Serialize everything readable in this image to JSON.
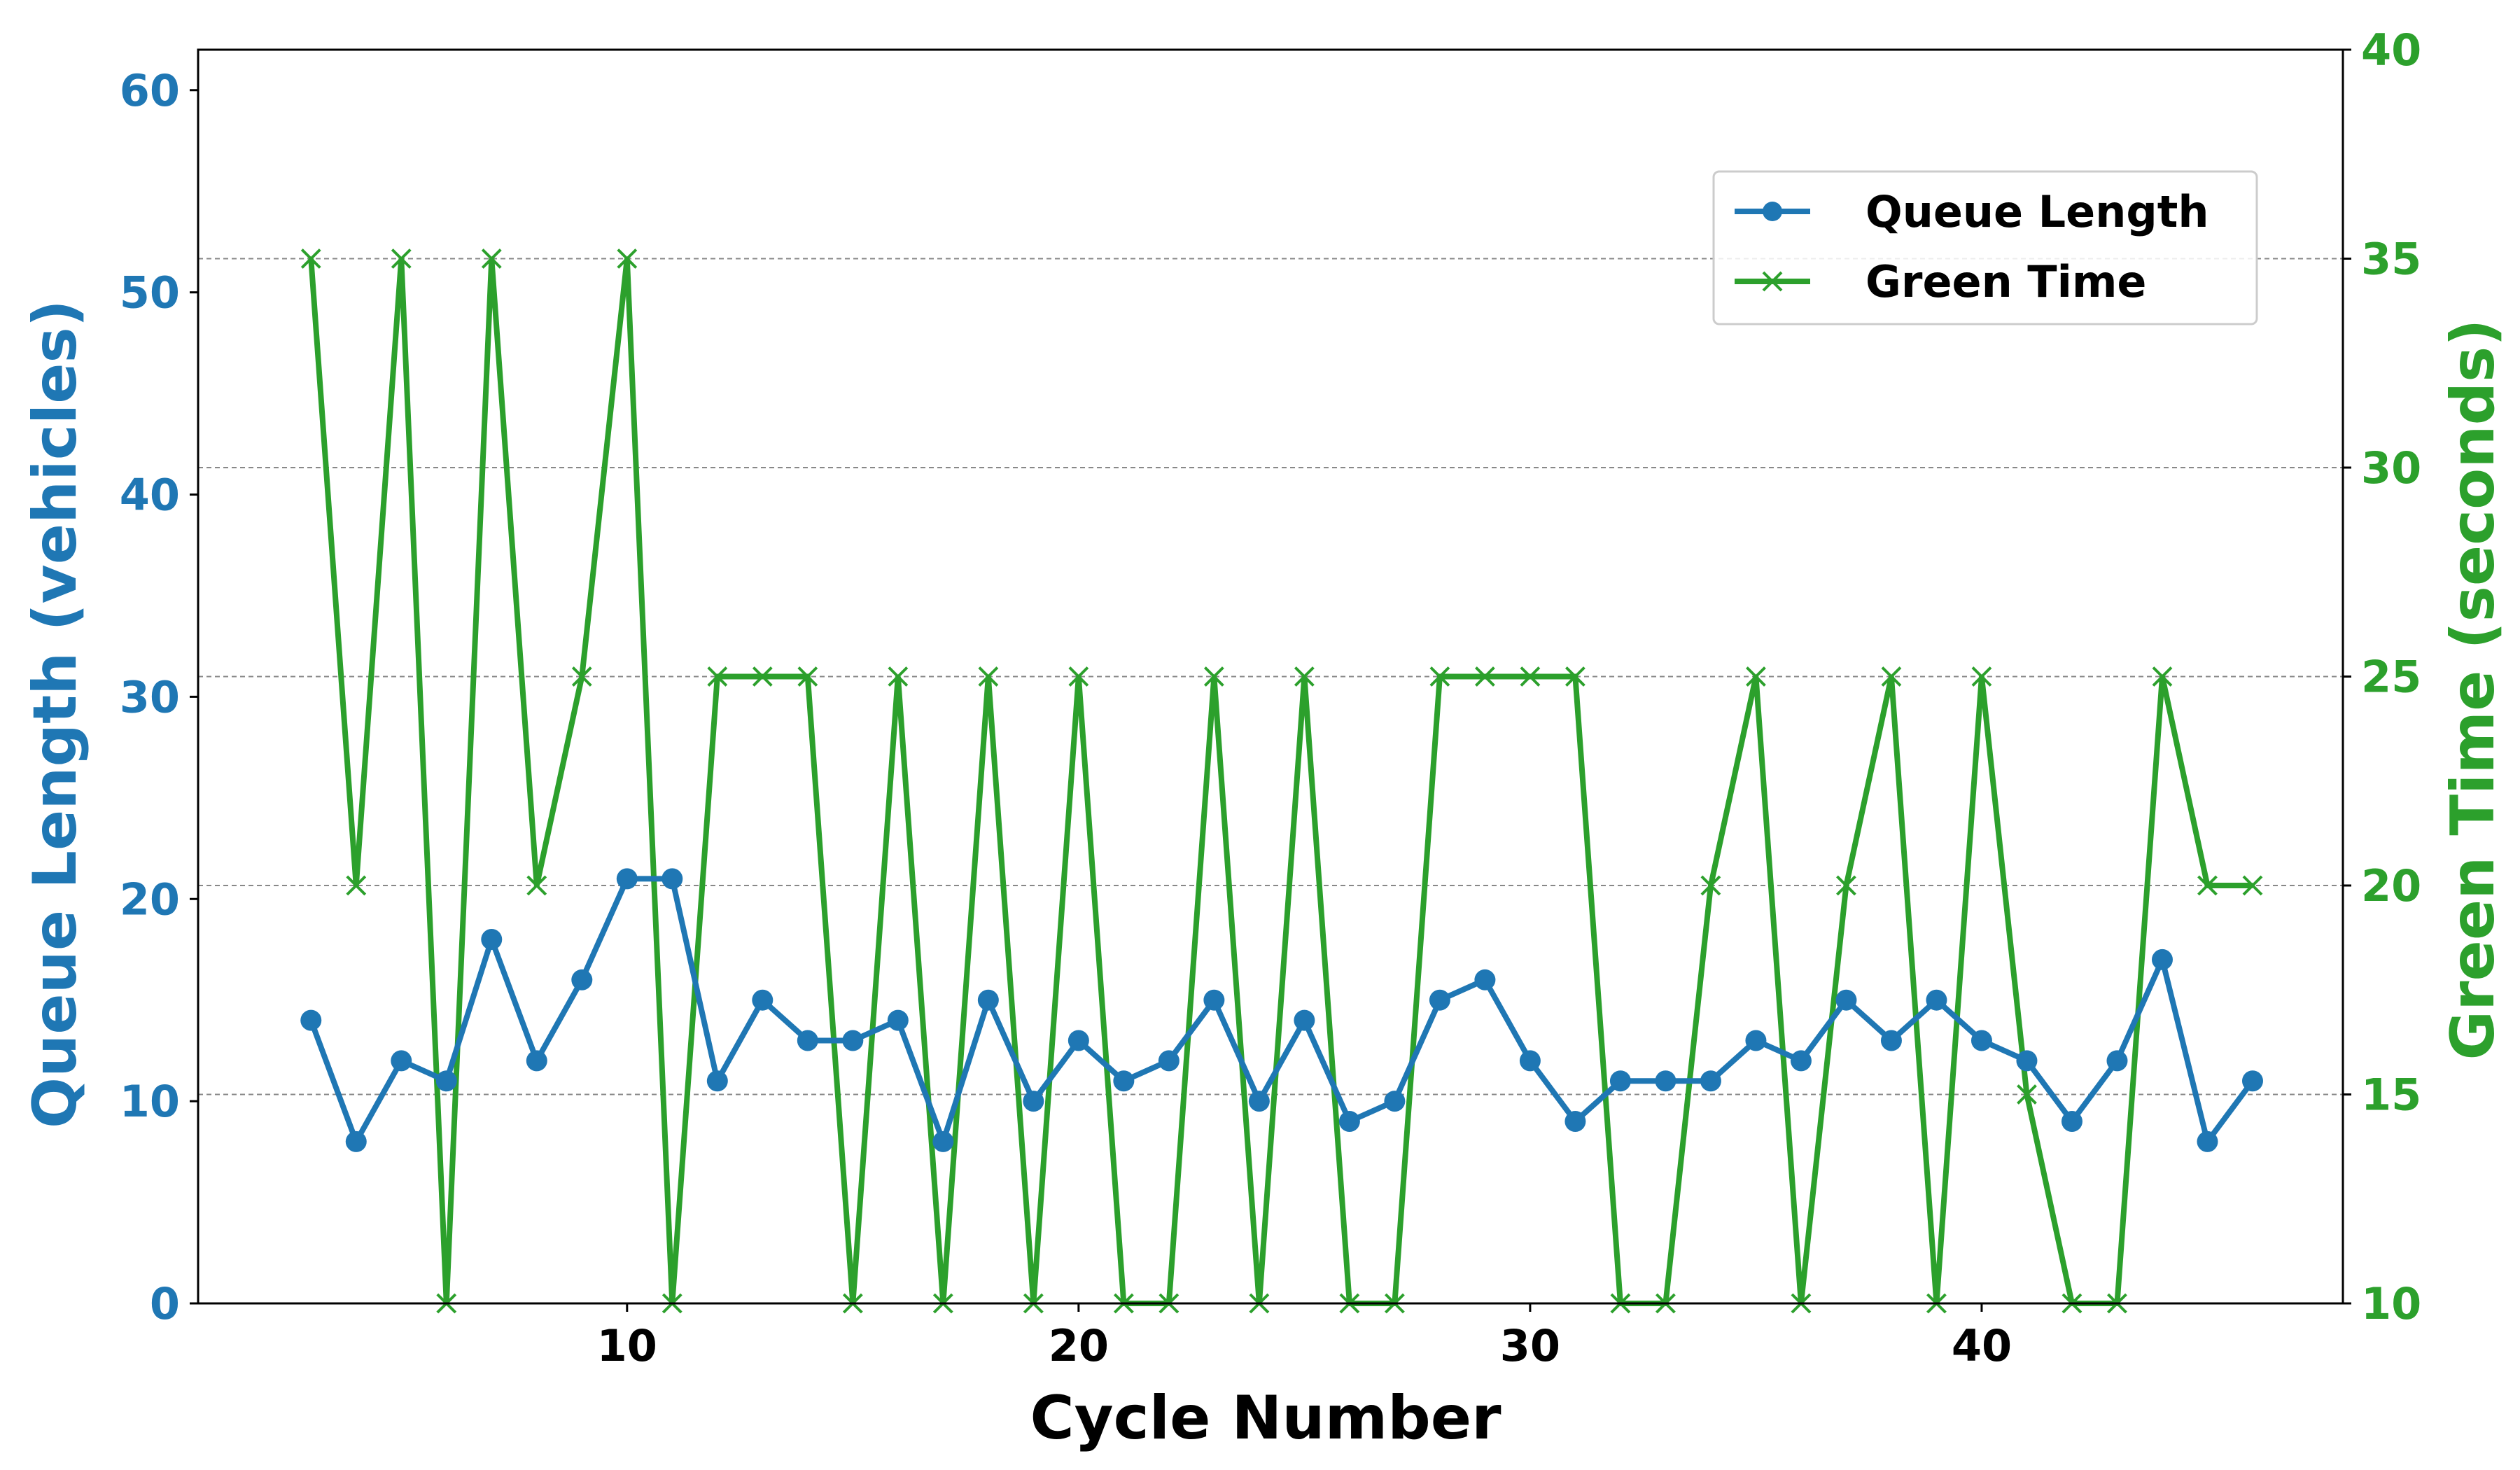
{
  "chart_data": {
    "type": "line",
    "title": "",
    "xlabel": "Cycle Number",
    "ylabel": "Queue Length (vehicles)",
    "ylabel_right": "Green Time (seconds)",
    "xlim": [
      0.5,
      48
    ],
    "ylim": [
      0,
      62
    ],
    "ylim_right": [
      10,
      40
    ],
    "x_ticks": [
      10,
      20,
      30,
      40
    ],
    "y_ticks": [
      0,
      10,
      20,
      30,
      40,
      50,
      60
    ],
    "y_ticks_right": [
      10,
      15,
      20,
      25,
      30,
      35,
      40
    ],
    "grid": "horizontal dashed at right-axis ticks",
    "legend_position": "upper-right",
    "x": [
      3,
      4,
      5,
      6,
      7,
      8,
      9,
      10,
      11,
      12,
      13,
      14,
      15,
      16,
      17,
      18,
      19,
      20,
      21,
      22,
      23,
      24,
      25,
      26,
      27,
      28,
      29,
      30,
      31,
      32,
      33,
      34,
      35,
      36,
      37,
      38,
      39,
      40,
      41,
      42,
      43,
      44,
      45,
      46
    ],
    "series": [
      {
        "name": "Queue Length",
        "axis": "left",
        "color": "#1f77b4",
        "marker": "circle",
        "values": [
          14,
          8,
          12,
          11,
          18,
          12,
          16,
          21,
          21,
          11,
          15,
          13,
          13,
          14,
          8,
          15,
          10,
          13,
          11,
          12,
          15,
          10,
          14,
          9,
          10,
          15,
          16,
          12,
          9,
          11,
          11,
          11,
          13,
          12,
          15,
          13,
          15,
          13,
          12,
          9,
          12,
          17,
          8,
          11
        ]
      },
      {
        "name": "Green Time",
        "axis": "right",
        "color": "#2ca02c",
        "marker": "x",
        "values": [
          35,
          20,
          35,
          10,
          35,
          20,
          25,
          35,
          10,
          25,
          25,
          25,
          10,
          25,
          10,
          25,
          10,
          25,
          10,
          10,
          25,
          10,
          25,
          10,
          10,
          25,
          25,
          25,
          25,
          10,
          10,
          20,
          25,
          10,
          20,
          25,
          10,
          25,
          15,
          10,
          10,
          25,
          20,
          20
        ]
      }
    ]
  }
}
